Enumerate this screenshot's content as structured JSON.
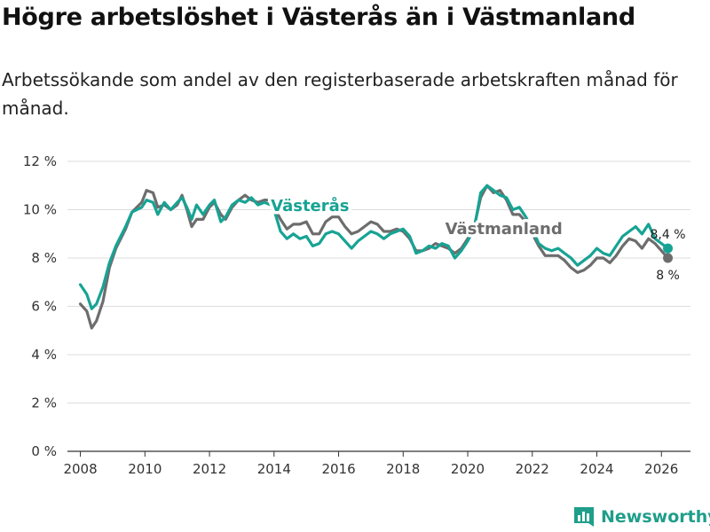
{
  "title": "Högre arbetslöshet i Västerås än i Västmanland",
  "subtitle": "Arbetssökande som andel av den registerbaserade arbetskraften månad för månad.",
  "brand": {
    "name": "Newsworthy",
    "icon": "bar-chart-logo-icon",
    "color": "#1f9e8a"
  },
  "chart_data": {
    "type": "line",
    "title": "Högre arbetslöshet i Västerås än i Västmanland",
    "xlabel": "",
    "ylabel": "",
    "xlim": [
      2007.6,
      2026.9
    ],
    "ylim": [
      0,
      12
    ],
    "y_ticks": [
      0,
      2,
      4,
      6,
      8,
      10,
      12
    ],
    "y_tick_labels": [
      "0 %",
      "2 %",
      "4 %",
      "6 %",
      "8 %",
      "10 %",
      "12 %"
    ],
    "x_ticks": [
      2008,
      2010,
      2012,
      2014,
      2016,
      2018,
      2020,
      2022,
      2024,
      2026
    ],
    "x_tick_labels": [
      "2008",
      "2010",
      "2012",
      "2014",
      "2016",
      "2018",
      "2020",
      "2022",
      "2024",
      "2026"
    ],
    "grid": true,
    "series": [
      {
        "name": "Västmanland",
        "color": "#6d6d6d",
        "end_label": "8 %",
        "points": [
          [
            2008.0,
            6.1
          ],
          [
            2008.2,
            5.8
          ],
          [
            2008.35,
            5.1
          ],
          [
            2008.5,
            5.4
          ],
          [
            2008.7,
            6.2
          ],
          [
            2008.9,
            7.6
          ],
          [
            2009.1,
            8.4
          ],
          [
            2009.4,
            9.2
          ],
          [
            2009.6,
            9.9
          ],
          [
            2009.9,
            10.3
          ],
          [
            2010.05,
            10.8
          ],
          [
            2010.25,
            10.7
          ],
          [
            2010.4,
            10.1
          ],
          [
            2010.6,
            10.2
          ],
          [
            2010.8,
            10.0
          ],
          [
            2011.0,
            10.2
          ],
          [
            2011.15,
            10.6
          ],
          [
            2011.3,
            10.0
          ],
          [
            2011.45,
            9.3
          ],
          [
            2011.6,
            9.6
          ],
          [
            2011.8,
            9.6
          ],
          [
            2012.0,
            10.1
          ],
          [
            2012.15,
            10.3
          ],
          [
            2012.35,
            9.8
          ],
          [
            2012.5,
            9.6
          ],
          [
            2012.7,
            10.1
          ],
          [
            2012.9,
            10.4
          ],
          [
            2013.1,
            10.6
          ],
          [
            2013.3,
            10.4
          ],
          [
            2013.5,
            10.3
          ],
          [
            2013.7,
            10.4
          ],
          [
            2013.9,
            10.4
          ],
          [
            2014.0,
            10.1
          ],
          [
            2014.2,
            9.6
          ],
          [
            2014.4,
            9.2
          ],
          [
            2014.6,
            9.4
          ],
          [
            2014.8,
            9.4
          ],
          [
            2015.0,
            9.5
          ],
          [
            2015.2,
            9.0
          ],
          [
            2015.4,
            9.0
          ],
          [
            2015.6,
            9.5
          ],
          [
            2015.8,
            9.7
          ],
          [
            2016.0,
            9.7
          ],
          [
            2016.2,
            9.3
          ],
          [
            2016.4,
            9.0
          ],
          [
            2016.6,
            9.1
          ],
          [
            2016.8,
            9.3
          ],
          [
            2017.0,
            9.5
          ],
          [
            2017.2,
            9.4
          ],
          [
            2017.4,
            9.1
          ],
          [
            2017.6,
            9.1
          ],
          [
            2017.8,
            9.2
          ],
          [
            2018.0,
            9.1
          ],
          [
            2018.2,
            8.8
          ],
          [
            2018.4,
            8.3
          ],
          [
            2018.6,
            8.3
          ],
          [
            2018.8,
            8.4
          ],
          [
            2019.0,
            8.6
          ],
          [
            2019.2,
            8.5
          ],
          [
            2019.4,
            8.4
          ],
          [
            2019.6,
            8.2
          ],
          [
            2019.8,
            8.4
          ],
          [
            2020.0,
            8.8
          ],
          [
            2020.2,
            9.3
          ],
          [
            2020.4,
            10.5
          ],
          [
            2020.6,
            11.0
          ],
          [
            2020.8,
            10.7
          ],
          [
            2021.0,
            10.8
          ],
          [
            2021.2,
            10.4
          ],
          [
            2021.4,
            9.8
          ],
          [
            2021.6,
            9.8
          ],
          [
            2021.8,
            9.5
          ],
          [
            2022.0,
            9.0
          ],
          [
            2022.2,
            8.5
          ],
          [
            2022.4,
            8.1
          ],
          [
            2022.6,
            8.1
          ],
          [
            2022.8,
            8.1
          ],
          [
            2023.0,
            7.9
          ],
          [
            2023.2,
            7.6
          ],
          [
            2023.4,
            7.4
          ],
          [
            2023.6,
            7.5
          ],
          [
            2023.8,
            7.7
          ],
          [
            2024.0,
            8.0
          ],
          [
            2024.2,
            8.0
          ],
          [
            2024.4,
            7.8
          ],
          [
            2024.6,
            8.1
          ],
          [
            2024.8,
            8.5
          ],
          [
            2025.0,
            8.8
          ],
          [
            2025.2,
            8.7
          ],
          [
            2025.4,
            8.4
          ],
          [
            2025.6,
            8.8
          ],
          [
            2025.8,
            8.6
          ],
          [
            2026.0,
            8.3
          ],
          [
            2026.2,
            8.0
          ]
        ]
      },
      {
        "name": "Västerås",
        "color": "#17a394",
        "end_label": "8,4 %",
        "points": [
          [
            2008.0,
            6.9
          ],
          [
            2008.2,
            6.5
          ],
          [
            2008.35,
            5.9
          ],
          [
            2008.5,
            6.1
          ],
          [
            2008.7,
            6.8
          ],
          [
            2008.9,
            7.8
          ],
          [
            2009.1,
            8.5
          ],
          [
            2009.4,
            9.3
          ],
          [
            2009.6,
            9.9
          ],
          [
            2009.9,
            10.1
          ],
          [
            2010.05,
            10.4
          ],
          [
            2010.25,
            10.3
          ],
          [
            2010.4,
            9.8
          ],
          [
            2010.6,
            10.3
          ],
          [
            2010.8,
            10.0
          ],
          [
            2011.0,
            10.3
          ],
          [
            2011.15,
            10.5
          ],
          [
            2011.3,
            10.1
          ],
          [
            2011.45,
            9.6
          ],
          [
            2011.6,
            10.2
          ],
          [
            2011.8,
            9.8
          ],
          [
            2012.0,
            10.2
          ],
          [
            2012.15,
            10.4
          ],
          [
            2012.35,
            9.5
          ],
          [
            2012.5,
            9.7
          ],
          [
            2012.7,
            10.2
          ],
          [
            2012.9,
            10.4
          ],
          [
            2013.1,
            10.3
          ],
          [
            2013.3,
            10.5
          ],
          [
            2013.5,
            10.2
          ],
          [
            2013.7,
            10.3
          ],
          [
            2013.9,
            10.2
          ],
          [
            2014.0,
            10.0
          ],
          [
            2014.2,
            9.1
          ],
          [
            2014.4,
            8.8
          ],
          [
            2014.6,
            9.0
          ],
          [
            2014.8,
            8.8
          ],
          [
            2015.0,
            8.9
          ],
          [
            2015.2,
            8.5
          ],
          [
            2015.4,
            8.6
          ],
          [
            2015.6,
            9.0
          ],
          [
            2015.8,
            9.1
          ],
          [
            2016.0,
            9.0
          ],
          [
            2016.2,
            8.7
          ],
          [
            2016.4,
            8.4
          ],
          [
            2016.6,
            8.7
          ],
          [
            2016.8,
            8.9
          ],
          [
            2017.0,
            9.1
          ],
          [
            2017.2,
            9.0
          ],
          [
            2017.4,
            8.8
          ],
          [
            2017.6,
            9.0
          ],
          [
            2017.8,
            9.1
          ],
          [
            2018.0,
            9.2
          ],
          [
            2018.2,
            8.9
          ],
          [
            2018.4,
            8.2
          ],
          [
            2018.6,
            8.3
          ],
          [
            2018.8,
            8.5
          ],
          [
            2019.0,
            8.4
          ],
          [
            2019.2,
            8.6
          ],
          [
            2019.4,
            8.5
          ],
          [
            2019.6,
            8.0
          ],
          [
            2019.8,
            8.3
          ],
          [
            2020.0,
            8.7
          ],
          [
            2020.2,
            9.2
          ],
          [
            2020.4,
            10.7
          ],
          [
            2020.6,
            11.0
          ],
          [
            2020.8,
            10.8
          ],
          [
            2021.0,
            10.6
          ],
          [
            2021.2,
            10.5
          ],
          [
            2021.4,
            10.0
          ],
          [
            2021.6,
            10.1
          ],
          [
            2021.8,
            9.7
          ],
          [
            2022.0,
            9.2
          ],
          [
            2022.2,
            8.6
          ],
          [
            2022.4,
            8.4
          ],
          [
            2022.6,
            8.3
          ],
          [
            2022.8,
            8.4
          ],
          [
            2023.0,
            8.2
          ],
          [
            2023.2,
            8.0
          ],
          [
            2023.4,
            7.7
          ],
          [
            2023.6,
            7.9
          ],
          [
            2023.8,
            8.1
          ],
          [
            2024.0,
            8.4
          ],
          [
            2024.2,
            8.2
          ],
          [
            2024.4,
            8.1
          ],
          [
            2024.6,
            8.5
          ],
          [
            2024.8,
            8.9
          ],
          [
            2025.0,
            9.1
          ],
          [
            2025.2,
            9.3
          ],
          [
            2025.4,
            9.0
          ],
          [
            2025.6,
            9.4
          ],
          [
            2025.8,
            8.8
          ],
          [
            2026.0,
            8.6
          ],
          [
            2026.2,
            8.4
          ]
        ]
      }
    ]
  }
}
